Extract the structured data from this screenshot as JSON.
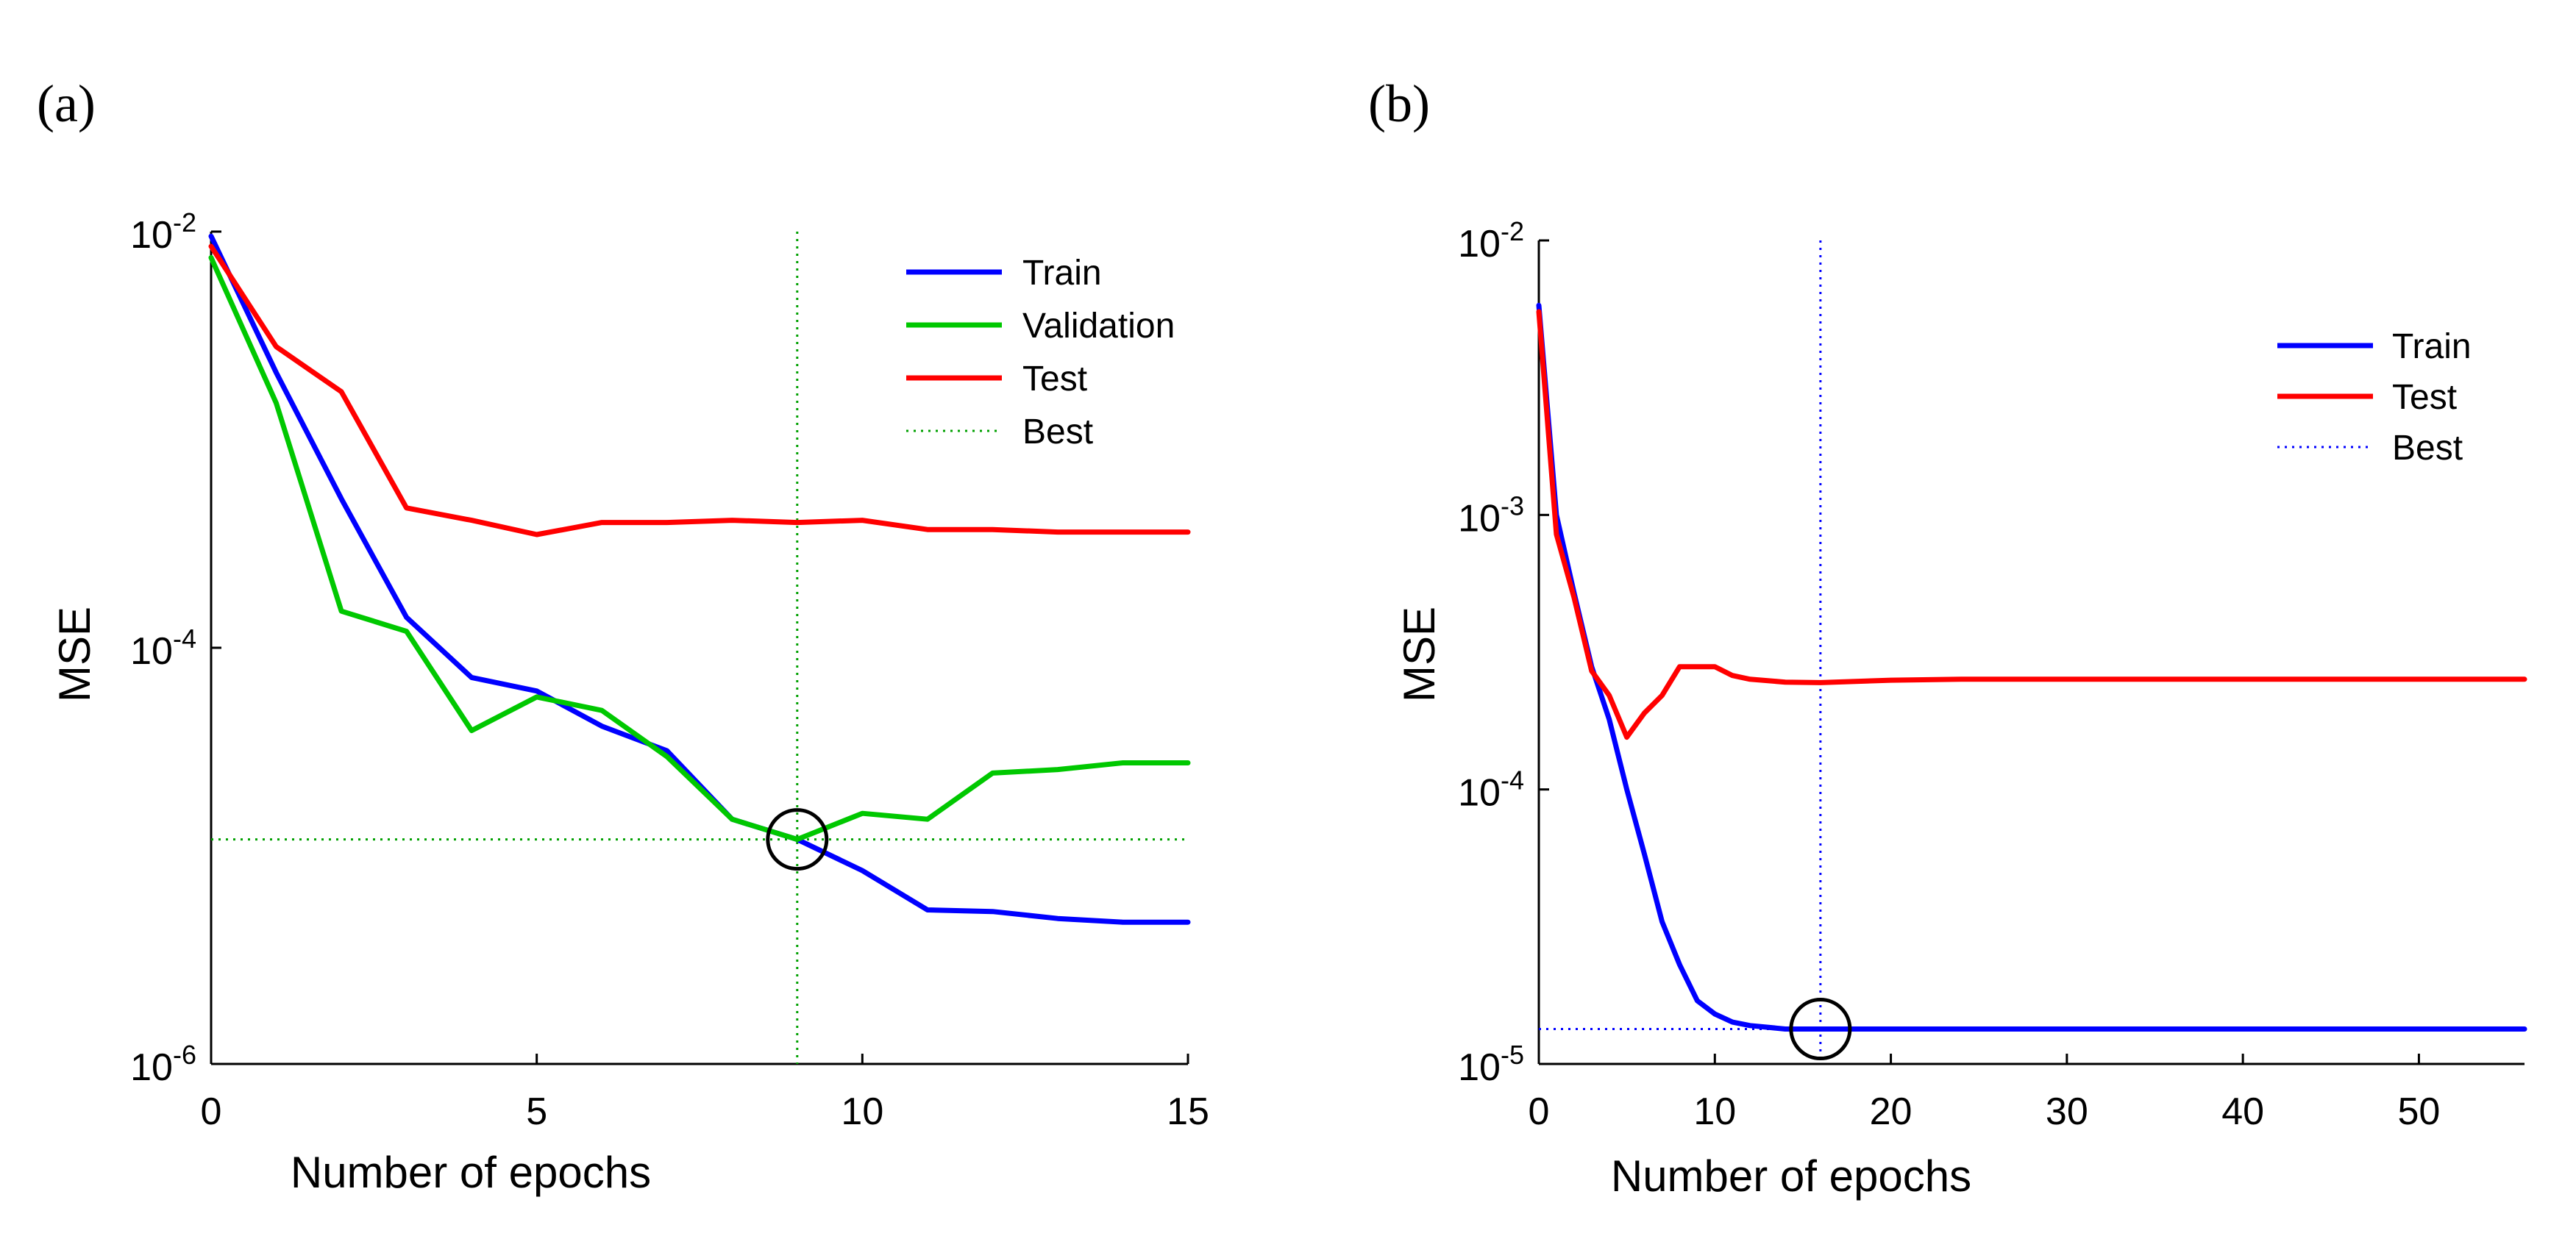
{
  "chart_data": [
    {
      "panel_label": "(a)",
      "type": "line",
      "xlabel": "Number of epochs",
      "ylabel": "MSE",
      "yscale": "log",
      "xlim": [
        0,
        15
      ],
      "ylim_exponent": [
        -6,
        -2
      ],
      "xticks": [
        "0",
        "5",
        "10",
        "15"
      ],
      "yticks": [
        {
          "exp": -2,
          "base": "10",
          "sup": "-2"
        },
        {
          "exp": -4,
          "base": "10",
          "sup": "-4"
        },
        {
          "exp": -6,
          "base": "10",
          "sup": "-6"
        }
      ],
      "grid": false,
      "legend_position": "top-right",
      "series": [
        {
          "name": "Train",
          "color": "#0000ff",
          "x": [
            0,
            1,
            2,
            3,
            4,
            5,
            6,
            7,
            8,
            9,
            10,
            11,
            12,
            13,
            14,
            15
          ],
          "y": [
            0.0095,
            0.0021,
            0.00052,
            0.00014,
            7.2e-05,
            6.2e-05,
            4.2e-05,
            3.2e-05,
            1.5e-05,
            1.2e-05,
            8.5e-06,
            5.5e-06,
            5.4e-06,
            5e-06,
            4.8e-06,
            4.8e-06
          ]
        },
        {
          "name": "Validation",
          "color": "#00c800",
          "x": [
            0,
            1,
            2,
            3,
            4,
            5,
            6,
            7,
            8,
            9,
            10,
            11,
            12,
            13,
            14,
            15
          ],
          "y": [
            0.0075,
            0.0015,
            0.00015,
            0.00012,
            4e-05,
            5.8e-05,
            5e-05,
            3e-05,
            1.5e-05,
            1.2e-05,
            1.6e-05,
            1.5e-05,
            2.5e-05,
            2.6e-05,
            2.8e-05,
            2.8e-05
          ]
        },
        {
          "name": "Test",
          "color": "#ff0000",
          "x": [
            0,
            1,
            2,
            3,
            4,
            5,
            6,
            7,
            8,
            9,
            10,
            11,
            12,
            13,
            14,
            15
          ],
          "y": [
            0.0085,
            0.0028,
            0.0017,
            0.00047,
            0.00041,
            0.00035,
            0.0004,
            0.0004,
            0.00041,
            0.0004,
            0.00041,
            0.00037,
            0.00037,
            0.00036,
            0.00036,
            0.00036
          ]
        },
        {
          "name": "Best",
          "color": "#00a000",
          "dotted": true,
          "best_x": 9,
          "best_y": 1.2e-05
        }
      ]
    },
    {
      "panel_label": "(b)",
      "type": "line",
      "xlabel": "Number of epochs",
      "ylabel": "MSE",
      "yscale": "log",
      "xlim": [
        0,
        56
      ],
      "ylim_exponent": [
        -5,
        -2
      ],
      "xticks": [
        "0",
        "10",
        "20",
        "30",
        "40",
        "50"
      ],
      "yticks": [
        {
          "exp": -2,
          "base": "10",
          "sup": "-2"
        },
        {
          "exp": -3,
          "base": "10",
          "sup": "-3"
        },
        {
          "exp": -4,
          "base": "10",
          "sup": "-4"
        },
        {
          "exp": -5,
          "base": "10",
          "sup": "-5"
        }
      ],
      "grid": false,
      "legend_position": "top-right",
      "series": [
        {
          "name": "Train",
          "color": "#0000ff",
          "x": [
            0,
            1,
            2,
            3,
            4,
            5,
            6,
            7,
            8,
            9,
            10,
            11,
            12,
            13,
            14,
            16,
            20,
            30,
            40,
            50,
            56
          ],
          "y": [
            0.0058,
            0.001,
            0.00052,
            0.00028,
            0.00018,
            0.0001,
            5.8e-05,
            3.3e-05,
            2.3e-05,
            1.7e-05,
            1.52e-05,
            1.42e-05,
            1.38e-05,
            1.36e-05,
            1.34e-05,
            1.34e-05,
            1.34e-05,
            1.34e-05,
            1.34e-05,
            1.34e-05,
            1.34e-05
          ]
        },
        {
          "name": "Test",
          "color": "#ff0000",
          "x": [
            0,
            1,
            2,
            3,
            4,
            5,
            6,
            7,
            8,
            9,
            10,
            11,
            12,
            14,
            16,
            20,
            24,
            30,
            40,
            50,
            56
          ],
          "y": [
            0.0055,
            0.00085,
            0.0005,
            0.00027,
            0.00022,
            0.000155,
            0.00019,
            0.00022,
            0.00028,
            0.00028,
            0.00028,
            0.00026,
            0.000252,
            0.000246,
            0.000245,
            0.00025,
            0.000252,
            0.000252,
            0.000252,
            0.000252,
            0.000252
          ]
        },
        {
          "name": "Best",
          "color": "#0000ff",
          "dotted": true,
          "best_x": 16,
          "best_y": 1.34e-05
        }
      ]
    }
  ]
}
